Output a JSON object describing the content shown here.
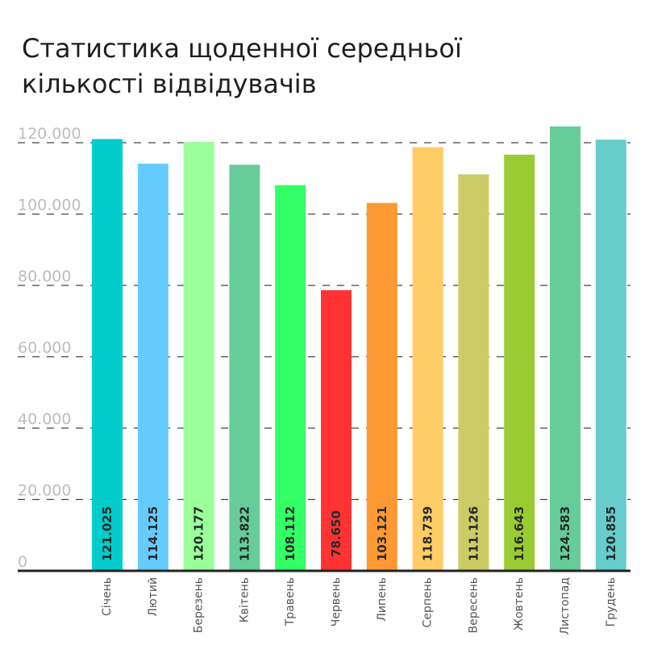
{
  "chart_data": {
    "type": "bar",
    "title": "Статистика щоденної середньої кількості відвідувачів",
    "xlabel": "",
    "ylabel": "",
    "ylim": [
      0,
      120000
    ],
    "yticks": [
      0,
      20000,
      40000,
      60000,
      80000,
      100000,
      120000
    ],
    "ytick_labels": [
      "0",
      "20.000",
      "40.000",
      "60.000",
      "80.000",
      "100.000",
      "120.000"
    ],
    "grid": true,
    "categories": [
      "Січень",
      "Лютий",
      "Березень",
      "Квітень",
      "Травень",
      "Червень",
      "Липень",
      "Серпень",
      "Вересень",
      "Жовтень",
      "Листопад",
      "Грудень"
    ],
    "values": [
      121025,
      114125,
      120177,
      113822,
      108112,
      78650,
      103121,
      118739,
      111126,
      116643,
      124583,
      120855
    ],
    "value_labels": [
      "121.025",
      "114.125",
      "120.177",
      "113.822",
      "108.112",
      "78.650",
      "103.121",
      "118.739",
      "111.126",
      "116.643",
      "124.583",
      "120.855"
    ],
    "colors": [
      "#00cccc",
      "#66ccff",
      "#99ff99",
      "#66cc99",
      "#33ff66",
      "#ff3333",
      "#ff9933",
      "#ffcc66",
      "#cccc66",
      "#99cc33",
      "#66cc99",
      "#66cccc"
    ]
  }
}
